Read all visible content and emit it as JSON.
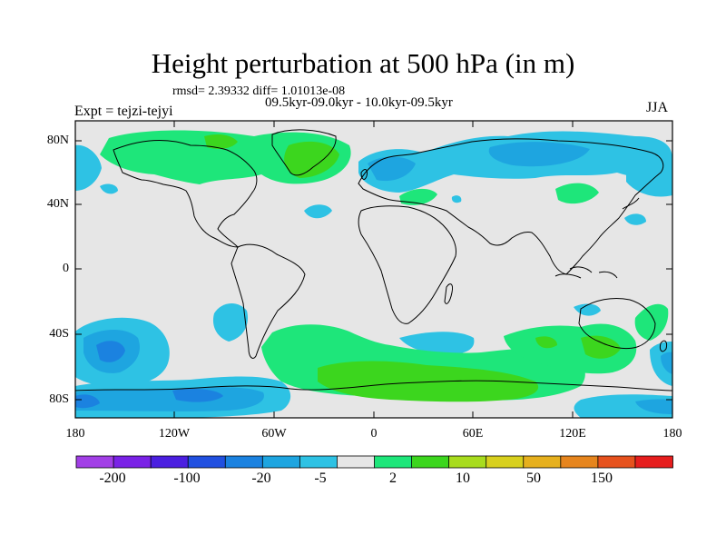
{
  "title": "Height perturbation at 500 hPa (in m)",
  "stats_line": "rmsd= 2.39332 diff= 1.01013e-08",
  "experiment_line": "09.5kyr-09.0kyr - 10.0kyr-09.5kyr",
  "expt_label": "Expt = tejzi-tejyi",
  "season": "JJA",
  "axes": {
    "lat_ticks": [
      "80N",
      "40N",
      "0",
      "40S",
      "80S"
    ],
    "lon_ticks": [
      "180",
      "120W",
      "60W",
      "0",
      "60E",
      "120E",
      "180"
    ]
  },
  "colorbar": {
    "labels": [
      "-200",
      "-100",
      "-20",
      "-5",
      "2",
      "10",
      "50",
      "150"
    ],
    "colors": [
      "#a23fe6",
      "#7a22e6",
      "#4b1fe0",
      "#2150e0",
      "#1b82e0",
      "#1ea5e0",
      "#2ec2e4",
      "#e6e6e6",
      "#1ee67a",
      "#3cd61e",
      "#a8dc1e",
      "#d8d01e",
      "#e6b01e",
      "#e6851e",
      "#e6521e",
      "#e61e1e"
    ]
  },
  "colors": {
    "land_outline": "#000000",
    "neutral_field": "#e6e6e6",
    "positive_light": "#1ee67a",
    "positive_strong": "#3cd61e",
    "negative_light": "#2ec2e4",
    "negative_mid": "#1ea5e0",
    "negative_strong": "#1b82e0"
  }
}
